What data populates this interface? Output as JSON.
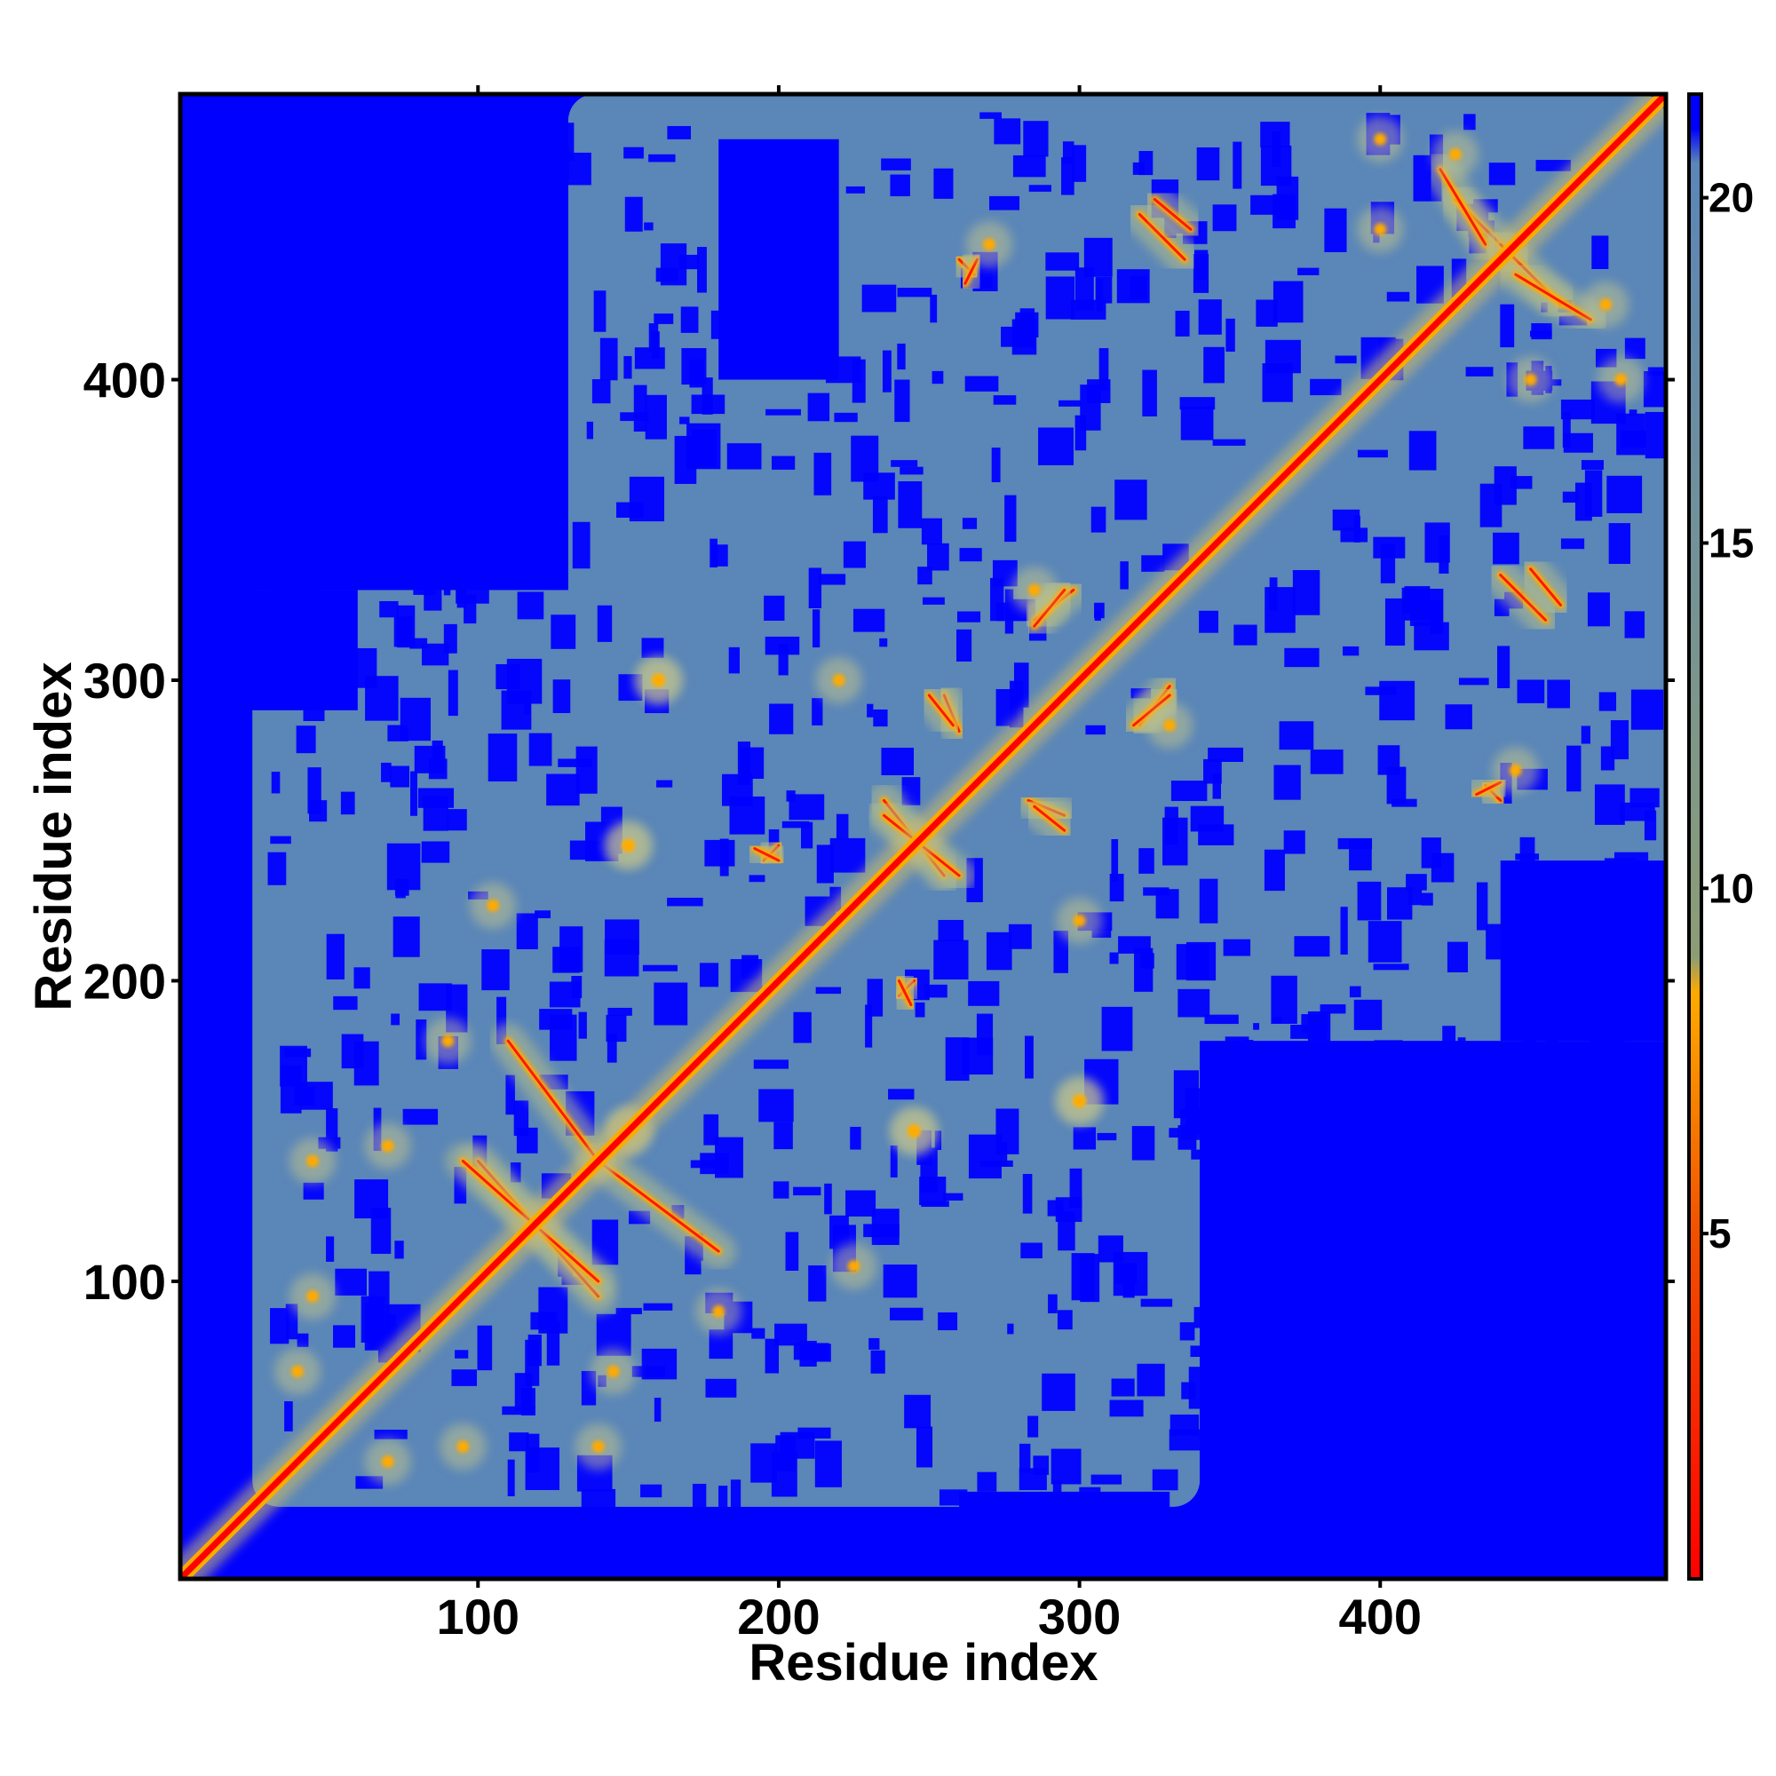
{
  "chart_data": {
    "type": "heatmap",
    "title": "",
    "xlabel": "Residue index",
    "ylabel": "Residue index",
    "n_residues": 495,
    "xlim": [
      1,
      495
    ],
    "ylim": [
      1,
      495
    ],
    "x_ticks": [
      100,
      200,
      300,
      400
    ],
    "y_ticks": [
      100,
      200,
      300,
      400
    ],
    "x_tick_labels": [
      "100",
      "200",
      "300",
      "400"
    ],
    "y_tick_labels": [
      "100",
      "200",
      "300",
      "400"
    ],
    "colorbar": {
      "range": [
        0,
        21.5
      ],
      "ticks": [
        5,
        10,
        15,
        20
      ],
      "tick_labels": [
        "5",
        "10",
        "15",
        "20"
      ],
      "stops": [
        {
          "value": 0,
          "color": "#ff0000"
        },
        {
          "value": 5,
          "color": "#f15000"
        },
        {
          "value": 8.5,
          "color": "#ffaa00"
        },
        {
          "value": 9,
          "color": "#8c9d75"
        },
        {
          "value": 20.5,
          "color": "#5a86b8"
        },
        {
          "value": 21,
          "color": "#0000ff"
        }
      ]
    },
    "colors": {
      "far": "#0000ff",
      "mid": "#5a86b8",
      "near": "#ffaa00",
      "contact": "#ff0000"
    },
    "note_symmetry": "symmetric distance map",
    "diagonal": {
      "from": 1,
      "to": 495
    },
    "mid_regions": [
      {
        "x": [
          25,
          340
        ],
        "y": [
          25,
          340
        ]
      },
      {
        "x": [
          130,
          495
        ],
        "y": [
          200,
          495
        ]
      },
      {
        "x": [
          60,
          330
        ],
        "y": [
          230,
          420
        ]
      },
      {
        "x": [
          330,
          495
        ],
        "y": [
          340,
          495
        ]
      }
    ],
    "far_blocks": [
      {
        "x": [
          1,
          130
        ],
        "y": [
          330,
          495
        ]
      },
      {
        "x": [
          1,
          60
        ],
        "y": [
          290,
          330
        ]
      },
      {
        "x": [
          340,
          495
        ],
        "y": [
          1,
          180
        ]
      },
      {
        "x": [
          1,
          25
        ],
        "y": [
          1,
          25
        ]
      },
      {
        "x": [
          260,
          330
        ],
        "y": [
          1,
          30
        ]
      },
      {
        "x": [
          440,
          495
        ],
        "y": [
          180,
          240
        ]
      },
      {
        "x": [
          180,
          220
        ],
        "y": [
          400,
          480
        ]
      }
    ],
    "contact_lines": [
      {
        "x1": 100,
        "y1": 140,
        "x2": 140,
        "y2": 95
      },
      {
        "x1": 140,
        "y1": 140,
        "x2": 180,
        "y2": 110
      },
      {
        "x1": 200,
        "y1": 245,
        "x2": 195,
        "y2": 240
      },
      {
        "x1": 235,
        "y1": 260,
        "x2": 255,
        "y2": 235
      },
      {
        "x1": 255,
        "y1": 295,
        "x2": 260,
        "y2": 283
      },
      {
        "x1": 285,
        "y1": 258,
        "x2": 295,
        "y2": 250
      },
      {
        "x1": 285,
        "y1": 320,
        "x2": 298,
        "y2": 330
      },
      {
        "x1": 318,
        "y1": 285,
        "x2": 330,
        "y2": 295
      },
      {
        "x1": 320,
        "y1": 455,
        "x2": 335,
        "y2": 440
      },
      {
        "x1": 425,
        "y1": 460,
        "x2": 445,
        "y2": 440
      },
      {
        "x1": 445,
        "y1": 435,
        "x2": 470,
        "y2": 420
      },
      {
        "x1": 450,
        "y1": 337,
        "x2": 460,
        "y2": 325
      },
      {
        "x1": 435,
        "y1": 265,
        "x2": 440,
        "y2": 260
      },
      {
        "x1": 240,
        "y1": 200,
        "x2": 244,
        "y2": 192
      },
      {
        "x1": 262,
        "y1": 432,
        "x2": 266,
        "y2": 440
      }
    ],
    "contact_spots": [
      {
        "x": 150,
        "y": 245
      },
      {
        "x": 160,
        "y": 300
      },
      {
        "x": 150,
        "y": 150
      },
      {
        "x": 90,
        "y": 180
      },
      {
        "x": 70,
        "y": 40
      },
      {
        "x": 95,
        "y": 45
      },
      {
        "x": 145,
        "y": 70
      },
      {
        "x": 45,
        "y": 140
      },
      {
        "x": 225,
        "y": 105
      },
      {
        "x": 245,
        "y": 150
      },
      {
        "x": 300,
        "y": 220
      },
      {
        "x": 300,
        "y": 160
      },
      {
        "x": 285,
        "y": 330
      },
      {
        "x": 270,
        "y": 445
      },
      {
        "x": 400,
        "y": 450
      },
      {
        "x": 425,
        "y": 475
      },
      {
        "x": 480,
        "y": 400
      }
    ]
  }
}
